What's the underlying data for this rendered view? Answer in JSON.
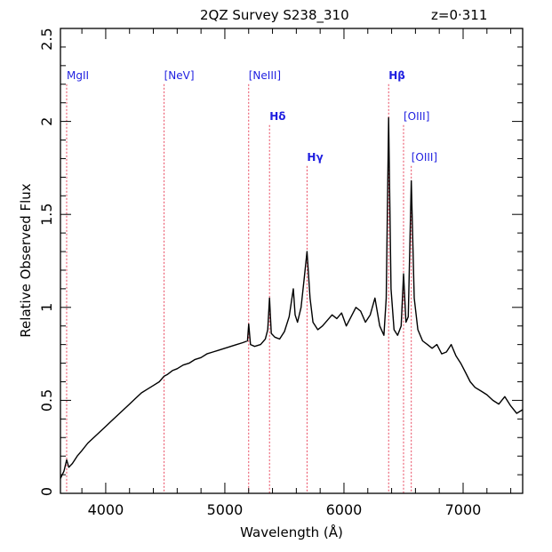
{
  "chart_data": {
    "type": "line",
    "title": "2QZ Survey S238_310",
    "redshift_label": "z=0·311",
    "xlabel": "Wavelength (Å)",
    "ylabel": "Relative Observed Flux",
    "xlim": [
      3620,
      7500
    ],
    "ylim": [
      0,
      2.5
    ],
    "x_ticks": [
      4000,
      5000,
      6000,
      7000
    ],
    "y_ticks": [
      0,
      0.5,
      1,
      1.5,
      2,
      2.5
    ],
    "y_tick_labels": [
      "0",
      "0.5",
      "1",
      "1.5",
      "2",
      "2.5"
    ],
    "grid": false,
    "line_color": "#000000",
    "marker_color": "#e8435a",
    "label_color": "#1f1fe0",
    "emission_lines": [
      {
        "label": "MgII",
        "wavelength": 3672,
        "top": 2.2
      },
      {
        "label": "[NeV]",
        "wavelength": 4490,
        "top": 2.2
      },
      {
        "label": "[NeIII]",
        "wavelength": 5200,
        "top": 2.2
      },
      {
        "label": "Hδ",
        "wavelength": 5375,
        "top": 1.98
      },
      {
        "label": "Hγ",
        "wavelength": 5690,
        "top": 1.76
      },
      {
        "label": "Hβ",
        "wavelength": 6375,
        "top": 2.2
      },
      {
        "label": "[OIII]",
        "wavelength": 6500,
        "top": 1.98
      },
      {
        "label": "[OIII]",
        "wavelength": 6565,
        "top": 1.76
      }
    ],
    "series": [
      {
        "x": [
          3620,
          3650,
          3672,
          3690,
          3720,
          3760,
          3800,
          3850,
          3900,
          3950,
          4000,
          4050,
          4100,
          4150,
          4200,
          4250,
          4300,
          4350,
          4400,
          4450,
          4490,
          4520,
          4560,
          4600,
          4650,
          4700,
          4750,
          4800,
          4850,
          4900,
          4950,
          5000,
          5050,
          5100,
          5150,
          5190,
          5200,
          5215,
          5250,
          5300,
          5340,
          5360,
          5375,
          5390,
          5420,
          5460,
          5500,
          5540,
          5575,
          5590,
          5610,
          5640,
          5665,
          5690,
          5715,
          5740,
          5780,
          5820,
          5860,
          5900,
          5940,
          5980,
          6020,
          6060,
          6100,
          6140,
          6180,
          6220,
          6260,
          6300,
          6335,
          6355,
          6375,
          6395,
          6420,
          6450,
          6480,
          6500,
          6520,
          6540,
          6565,
          6590,
          6620,
          6660,
          6700,
          6740,
          6780,
          6820,
          6860,
          6900,
          6940,
          6980,
          7020,
          7060,
          7100,
          7150,
          7200,
          7250,
          7300,
          7350,
          7400,
          7450,
          7500
        ],
        "y": [
          0.08,
          0.12,
          0.18,
          0.14,
          0.16,
          0.2,
          0.23,
          0.27,
          0.3,
          0.33,
          0.36,
          0.39,
          0.42,
          0.45,
          0.48,
          0.51,
          0.54,
          0.56,
          0.58,
          0.6,
          0.63,
          0.64,
          0.66,
          0.67,
          0.69,
          0.7,
          0.72,
          0.73,
          0.75,
          0.76,
          0.77,
          0.78,
          0.79,
          0.8,
          0.81,
          0.82,
          0.91,
          0.8,
          0.79,
          0.8,
          0.83,
          0.88,
          1.05,
          0.86,
          0.84,
          0.83,
          0.87,
          0.95,
          1.1,
          0.96,
          0.92,
          1.0,
          1.15,
          1.3,
          1.05,
          0.92,
          0.88,
          0.9,
          0.93,
          0.96,
          0.94,
          0.97,
          0.9,
          0.95,
          1.0,
          0.98,
          0.92,
          0.96,
          1.05,
          0.9,
          0.85,
          1.05,
          2.02,
          1.1,
          0.88,
          0.85,
          0.9,
          1.18,
          0.92,
          0.95,
          1.68,
          1.05,
          0.88,
          0.82,
          0.8,
          0.78,
          0.8,
          0.75,
          0.76,
          0.8,
          0.74,
          0.7,
          0.65,
          0.6,
          0.57,
          0.55,
          0.53,
          0.5,
          0.48,
          0.52,
          0.47,
          0.43,
          0.45
        ]
      }
    ]
  }
}
